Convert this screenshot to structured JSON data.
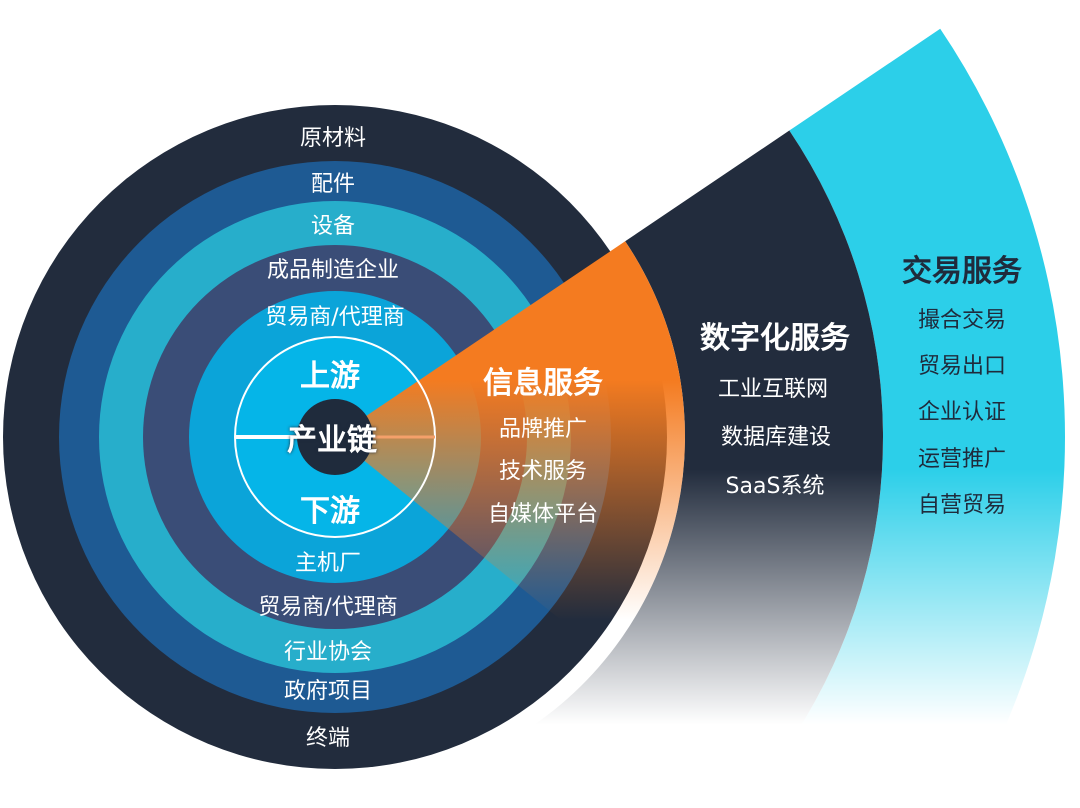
{
  "colors": {
    "outer_ring": "#222c3d",
    "ring_2": "#1e5a93",
    "ring_3": "#27aecb",
    "ring_4": "#3a4d77",
    "ring_5": "#0ba4d9",
    "inner": "#05b5e8",
    "core": "#1f2b3c",
    "info_service": "#f47b20",
    "digital_service": "#222c3d",
    "trade_service": "#2ccfe9"
  },
  "core": {
    "label": "产业链",
    "upstream": "上游",
    "downstream": "下游"
  },
  "upstream_rings": [
    "原材料",
    "配件",
    "设备",
    "成品制造企业",
    "贸易商/代理商"
  ],
  "downstream_rings": [
    "主机厂",
    "贸易商/代理商",
    "行业协会",
    "政府项目",
    "终端"
  ],
  "services": [
    {
      "title": "信息服务",
      "items": [
        "品牌推广",
        "技术服务",
        "自媒体平台"
      ]
    },
    {
      "title": "数字化服务",
      "items": [
        "工业互联网",
        "数据库建设",
        "SaaS系统"
      ]
    },
    {
      "title": "交易服务",
      "items": [
        "撮合交易",
        "贸易出口",
        "企业认证",
        "运营推广",
        "自营贸易"
      ]
    }
  ]
}
